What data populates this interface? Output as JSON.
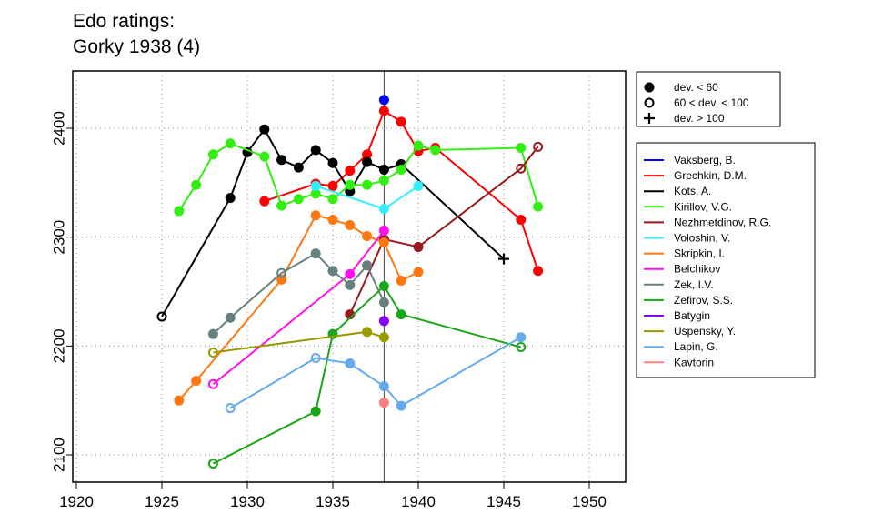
{
  "chart_data": {
    "type": "line",
    "title_lines": [
      "Edo ratings:",
      "Gorky 1938 (4)"
    ],
    "xlim": [
      1918.5,
      1952
    ],
    "ylim": [
      2077,
      2452
    ],
    "xticks": [
      1920,
      1925,
      1930,
      1935,
      1940,
      1945,
      1950
    ],
    "yticks": [
      2100,
      2200,
      2300,
      2400
    ],
    "marker_line_year": 1938,
    "grid": true,
    "dev_legend": [
      {
        "symbol": "filled",
        "label": "dev. < 60"
      },
      {
        "symbol": "open",
        "label": "60 < dev. < 100"
      },
      {
        "symbol": "plus",
        "label": "dev. > 100"
      }
    ],
    "series": [
      {
        "name": "Vaksberg, B.",
        "color": "#0000FF",
        "points": [
          [
            1938,
            2426,
            "f"
          ]
        ]
      },
      {
        "name": "Grechkin, D.M.",
        "color": "#FF0000",
        "points": [
          [
            1931,
            2333,
            "f"
          ],
          [
            1934,
            2349,
            "f"
          ],
          [
            1935,
            2347,
            "f"
          ],
          [
            1936,
            2361,
            "f"
          ],
          [
            1937,
            2376,
            "f"
          ],
          [
            1938,
            2416,
            "f"
          ],
          [
            1939,
            2406,
            "f"
          ],
          [
            1940,
            2379,
            "f"
          ],
          [
            1941,
            2382,
            "f"
          ],
          [
            1946,
            2316,
            "f"
          ],
          [
            1947,
            2269,
            "f"
          ]
        ]
      },
      {
        "name": "Kots, A.",
        "color": "#000000",
        "points": [
          [
            1925,
            2227,
            "o"
          ],
          [
            1929,
            2336,
            "f"
          ],
          [
            1930,
            2378,
            "f"
          ],
          [
            1931,
            2399,
            "f"
          ],
          [
            1932,
            2371,
            "f"
          ],
          [
            1933,
            2364,
            "f"
          ],
          [
            1934,
            2380,
            "f"
          ],
          [
            1935,
            2368,
            "f"
          ],
          [
            1936,
            2342,
            "f"
          ],
          [
            1937,
            2369,
            "f"
          ],
          [
            1938,
            2362,
            "f"
          ],
          [
            1939,
            2367,
            "f"
          ],
          [
            1945,
            2280,
            "p"
          ]
        ]
      },
      {
        "name": "Kirillov, V.G.",
        "color": "#33EE11",
        "points": [
          [
            1926,
            2324,
            "f"
          ],
          [
            1927,
            2348,
            "f"
          ],
          [
            1928,
            2376,
            "f"
          ],
          [
            1929,
            2386,
            "f"
          ],
          [
            1931,
            2374,
            "f"
          ],
          [
            1932,
            2329,
            "f"
          ],
          [
            1933,
            2335,
            "f"
          ],
          [
            1934,
            2340,
            "f"
          ],
          [
            1935,
            2335,
            "f"
          ],
          [
            1936,
            2348,
            "f"
          ],
          [
            1937,
            2348,
            "f"
          ],
          [
            1938,
            2352,
            "f"
          ],
          [
            1939,
            2362,
            "f"
          ],
          [
            1940,
            2384,
            "f"
          ],
          [
            1941,
            2380,
            "f"
          ],
          [
            1946,
            2382,
            "f"
          ],
          [
            1947,
            2328,
            "f"
          ]
        ]
      },
      {
        "name": "Nezhmetdinov, R.G.",
        "color": "#991A1E",
        "points": [
          [
            1936,
            2229,
            "f"
          ],
          [
            1938,
            2298,
            "f"
          ],
          [
            1940,
            2291,
            "f"
          ],
          [
            1946,
            2363,
            "o"
          ],
          [
            1947,
            2383,
            "o"
          ]
        ]
      },
      {
        "name": "Voloshin, V.",
        "color": "#33EEFF",
        "points": [
          [
            1934,
            2347,
            "f"
          ],
          [
            1938,
            2326,
            "f"
          ],
          [
            1940,
            2347,
            "f"
          ]
        ]
      },
      {
        "name": "Skripkin, I.",
        "color": "#FF7711",
        "points": [
          [
            1926,
            2150,
            "f"
          ],
          [
            1927,
            2168,
            "f"
          ],
          [
            1932,
            2261,
            "f"
          ],
          [
            1934,
            2320,
            "f"
          ],
          [
            1935,
            2316,
            "f"
          ],
          [
            1936,
            2311,
            "f"
          ],
          [
            1937,
            2301,
            "f"
          ],
          [
            1938,
            2295,
            "f"
          ],
          [
            1939,
            2260,
            "f"
          ],
          [
            1940,
            2268,
            "f"
          ]
        ]
      },
      {
        "name": "Belchikov",
        "color": "#FF11EE",
        "points": [
          [
            1928,
            2165,
            "o"
          ],
          [
            1936,
            2266,
            "f"
          ],
          [
            1938,
            2306,
            "f"
          ]
        ]
      },
      {
        "name": "Zek, I.V.",
        "color": "#668080",
        "points": [
          [
            1928,
            2211,
            "f"
          ],
          [
            1929,
            2226,
            "f"
          ],
          [
            1932,
            2267,
            "o"
          ],
          [
            1934,
            2285,
            "f"
          ],
          [
            1935,
            2269,
            "f"
          ],
          [
            1936,
            2256,
            "f"
          ],
          [
            1937,
            2274,
            "f"
          ],
          [
            1938,
            2240,
            "f"
          ]
        ]
      },
      {
        "name": "Zefirov, S.S.",
        "color": "#1AA61A",
        "points": [
          [
            1928,
            2092,
            "o"
          ],
          [
            1934,
            2140,
            "f"
          ],
          [
            1935,
            2211,
            "f"
          ],
          [
            1938,
            2255,
            "f"
          ],
          [
            1939,
            2229,
            "f"
          ],
          [
            1946,
            2199,
            "o"
          ]
        ]
      },
      {
        "name": "Batygin",
        "color": "#8800FF",
        "points": [
          [
            1938,
            2223,
            "f"
          ]
        ]
      },
      {
        "name": "Uspensky, Y.",
        "color": "#999900",
        "points": [
          [
            1928,
            2194,
            "o"
          ],
          [
            1937,
            2213,
            "f"
          ],
          [
            1938,
            2208,
            "f"
          ]
        ]
      },
      {
        "name": "Lapin, G.",
        "color": "#66AAEE",
        "points": [
          [
            1929,
            2143,
            "o"
          ],
          [
            1934,
            2189,
            "o"
          ],
          [
            1936,
            2184,
            "f"
          ],
          [
            1938,
            2163,
            "f"
          ],
          [
            1939,
            2145,
            "f"
          ],
          [
            1946,
            2208,
            "f"
          ]
        ]
      },
      {
        "name": "Kavtorin",
        "color": "#FF8080",
        "points": [
          [
            1938,
            2148,
            "f"
          ]
        ]
      }
    ]
  }
}
